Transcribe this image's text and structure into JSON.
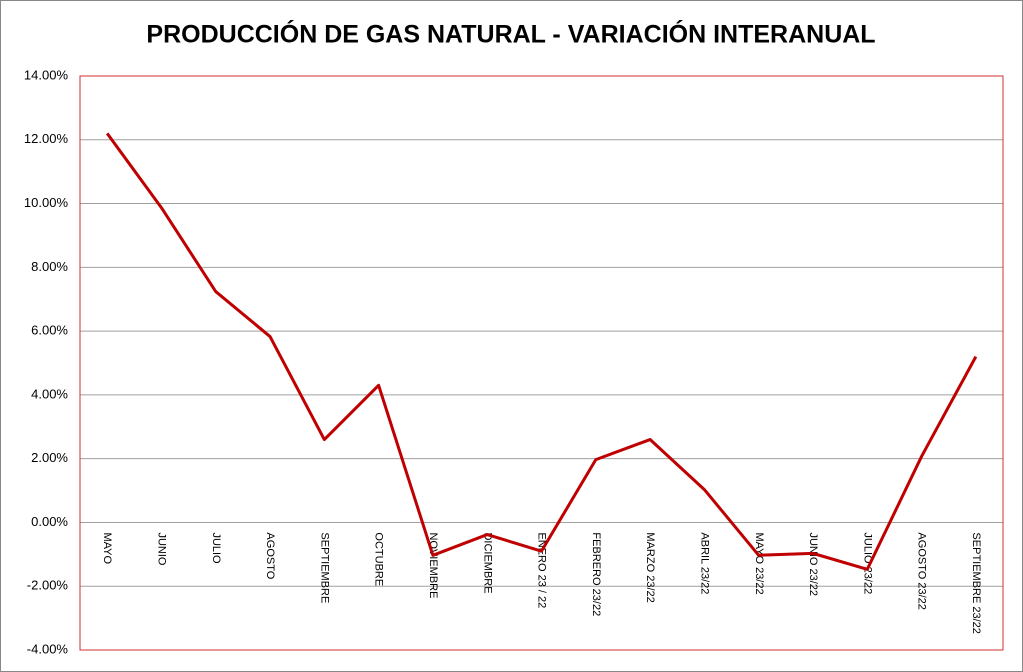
{
  "chart_data": {
    "type": "line",
    "title": "PRODUCCIÓN DE GAS NATURAL - VARIACIÓN INTERANUAL",
    "categories": [
      "MAYO",
      "JUNIO",
      "JULIO",
      "AGOSTO",
      "SEPTIEMBRE",
      "OCTUBRE",
      "NOVIEMBRE",
      "DICIEMBRE",
      "ENERO 23 / 22",
      "FEBRERO 23/22",
      "MARZO 23/22",
      "ABRIL 23/22",
      "MAYO 23/22",
      "JUNIO 23/22",
      "JULIO 23/22",
      "AGOSTO 23/22",
      "SEPTIEMBRE 23/22"
    ],
    "series": [
      {
        "color": "#c00000",
        "values": [
          12.2,
          9.87,
          7.24,
          5.83,
          2.6,
          4.3,
          -1.03,
          -0.38,
          -0.9,
          1.97,
          2.6,
          1.03,
          -1.03,
          -0.97,
          -1.47,
          2.07,
          5.2
        ]
      }
    ],
    "ylim": [
      -4,
      14
    ],
    "yticks": [
      {
        "value": -4,
        "label": "-4.00%"
      },
      {
        "value": -2,
        "label": "-2.00%"
      },
      {
        "value": 0,
        "label": "0.00%"
      },
      {
        "value": 2,
        "label": "2.00%"
      },
      {
        "value": 4,
        "label": "4.00%"
      },
      {
        "value": 6,
        "label": "6.00%"
      },
      {
        "value": 8,
        "label": "8.00%"
      },
      {
        "value": 10,
        "label": "10.00%"
      },
      {
        "value": 12,
        "label": "12.00%"
      },
      {
        "value": 14,
        "label": "14.00%"
      }
    ],
    "grid": true
  }
}
